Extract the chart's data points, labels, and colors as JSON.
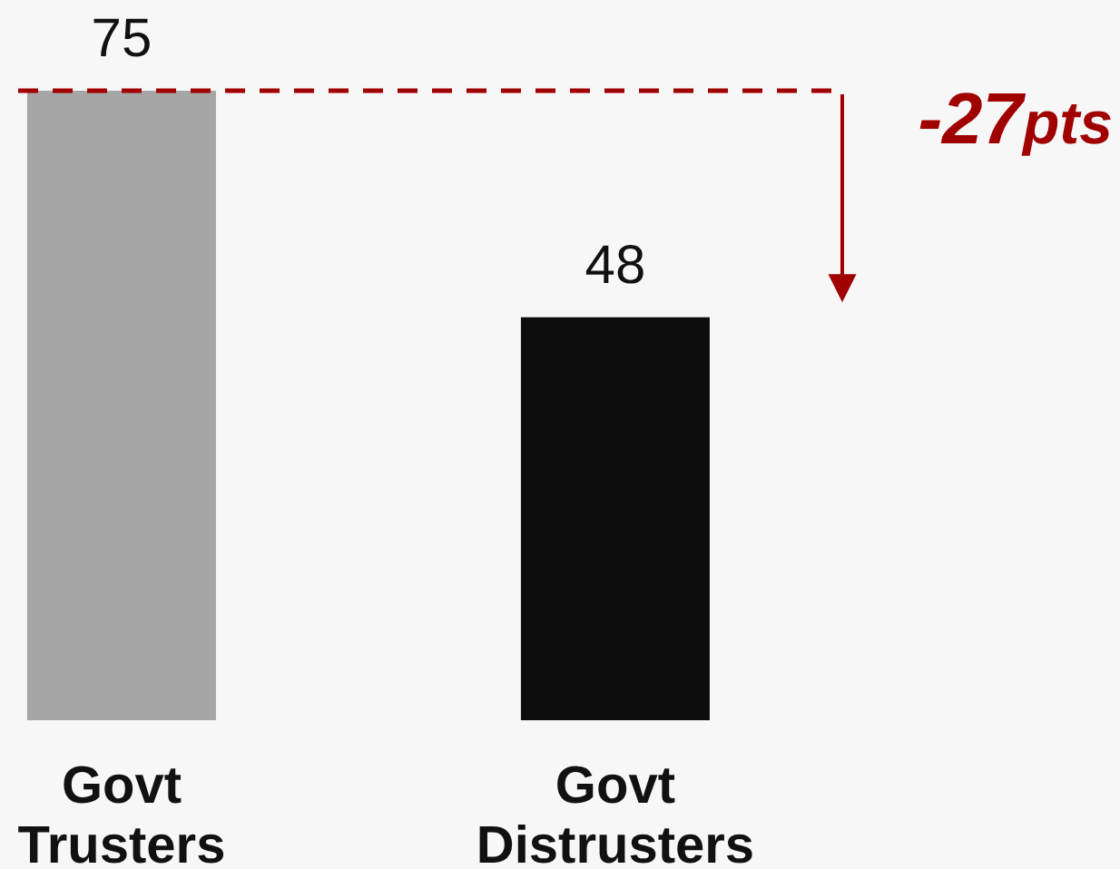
{
  "chart_data": {
    "type": "bar",
    "categories": [
      "Govt Trusters",
      "Govt Distrusters"
    ],
    "values": [
      75,
      48
    ],
    "colors": [
      "#a6a6a6",
      "#0d0d0d"
    ],
    "data_labels": true,
    "tick_labels": "x",
    "ref_lines": [
      {
        "axis": "y",
        "value": 75,
        "color": "#a00000",
        "line_style": "dashed"
      }
    ],
    "annotations": [
      "-27pts"
    ]
  }
}
